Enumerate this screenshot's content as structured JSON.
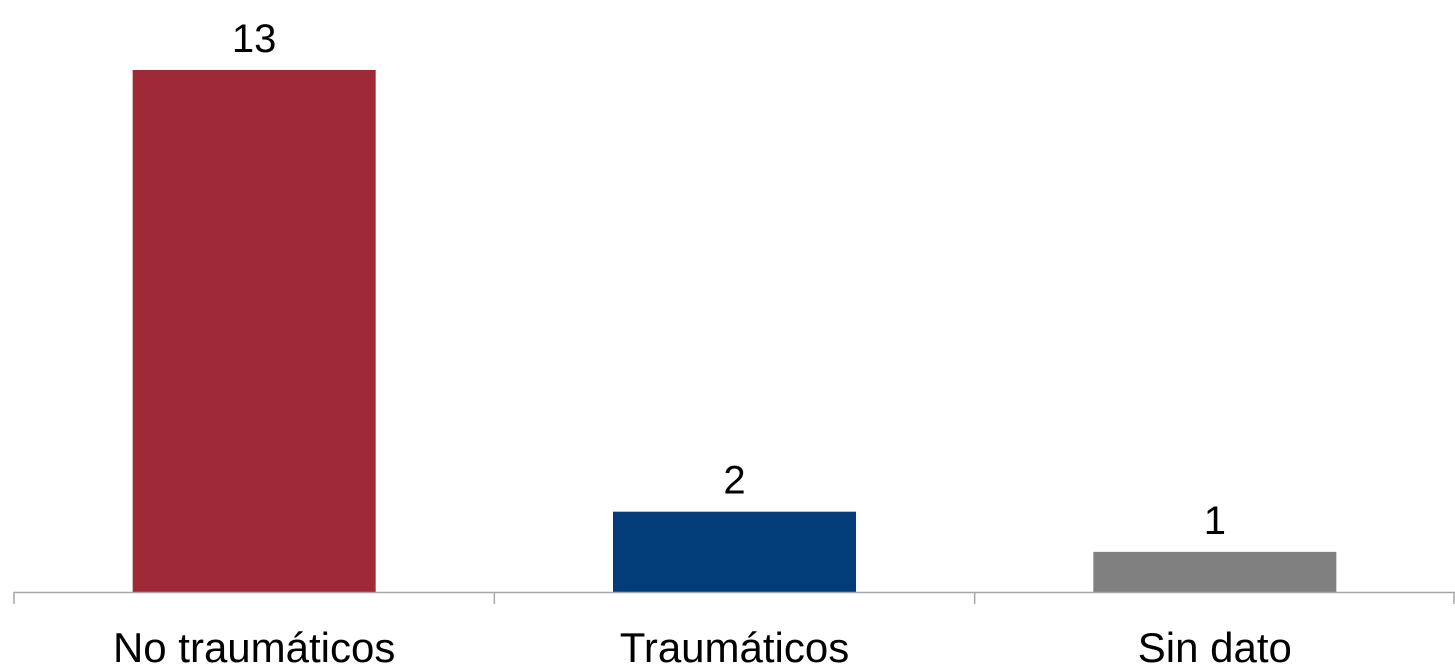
{
  "chart_data": {
    "type": "bar",
    "categories": [
      "No traumáticos",
      "Traumáticos",
      "Sin dato"
    ],
    "values": [
      13,
      2,
      1
    ],
    "data_labels": [
      "13",
      "2",
      "1"
    ],
    "colors": [
      "#9E2937",
      "#023D7A",
      "#808080"
    ],
    "title": "",
    "xlabel": "",
    "ylabel": "",
    "ylim": [
      0,
      13
    ],
    "grid": false,
    "legend": "none",
    "axis_color": "#A6A6A6"
  }
}
